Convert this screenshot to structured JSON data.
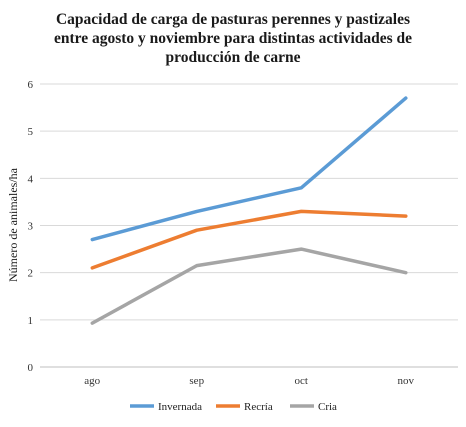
{
  "chart_data": {
    "type": "line",
    "title_lines": [
      "Capacidad de carga de pasturas perennes y pastizales",
      "entre agosto y noviembre para distintas actividades de",
      "producción de carne"
    ],
    "xlabel": "",
    "ylabel": "Número de animales/ha",
    "categories": [
      "ago",
      "sep",
      "oct",
      "nov"
    ],
    "ylim": [
      0,
      6
    ],
    "yticks": [
      "0",
      "1",
      "2",
      "3",
      "4",
      "5",
      "6"
    ],
    "grid": true,
    "legend_position": "bottom",
    "series": [
      {
        "name": "Invernada",
        "color": "#5b9bd5",
        "values": [
          2.7,
          3.3,
          3.8,
          5.7
        ]
      },
      {
        "name": "Recría",
        "color": "#ed7d31",
        "values": [
          2.1,
          2.9,
          3.3,
          3.2
        ]
      },
      {
        "name": "Cria",
        "color": "#a5a5a5",
        "values": [
          0.93,
          2.15,
          2.5,
          2.0
        ]
      }
    ]
  }
}
